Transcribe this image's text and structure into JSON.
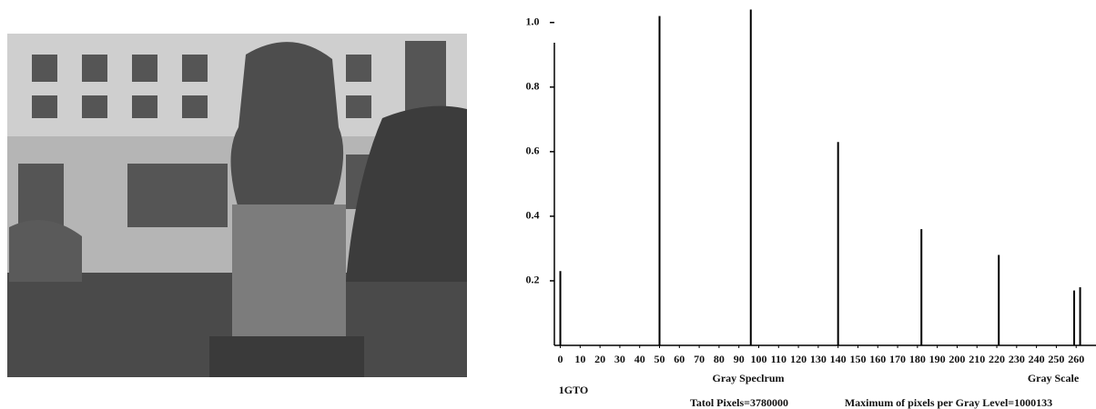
{
  "chart_data": {
    "type": "bar",
    "x": [
      0,
      50,
      96,
      140,
      182,
      221,
      259,
      262
    ],
    "values": [
      0.23,
      1.02,
      1.04,
      0.63,
      0.36,
      0.28,
      0.17,
      0.18
    ],
    "color": "#000000",
    "xlim": [
      -3,
      270
    ],
    "xticks": [
      0,
      10,
      20,
      30,
      40,
      50,
      60,
      70,
      80,
      90,
      100,
      110,
      120,
      130,
      140,
      150,
      160,
      170,
      180,
      190,
      200,
      210,
      220,
      230,
      240,
      250,
      260
    ],
    "ylim": [
      0,
      1.05
    ],
    "yticks": [
      0.2,
      0.4,
      0.6,
      0.8,
      {
        "value": 1,
        "label": "1.0"
      }
    ],
    "x_label": "Gray Speclrum",
    "x_label_right": "Gray Scale",
    "annotations": [
      "1GTO",
      "Tatol Pixels=3780000",
      "Maximum of pixels per Gray Level=1000133"
    ]
  }
}
